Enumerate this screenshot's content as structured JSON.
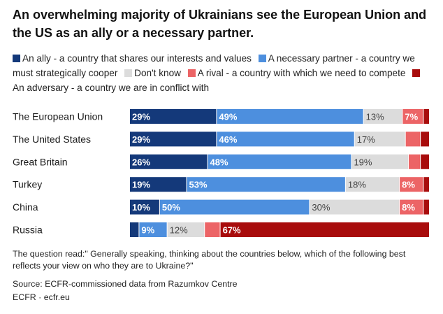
{
  "chart_data": {
    "type": "bar",
    "orientation": "horizontal",
    "stacked": true,
    "title": "An overwhelming majority of Ukrainians see the European Union and the US as an ally or a necessary partner.",
    "categories": [
      "The European Union",
      "The United States",
      "Great Britain",
      "Turkey",
      "China",
      "Russia"
    ],
    "series": [
      {
        "name": "An ally - a country that shares our interests and values",
        "color": "#14397a",
        "text_color": "#ffffff",
        "values": [
          29,
          29,
          26,
          19,
          10,
          3
        ],
        "labels": [
          "29%",
          "29%",
          "26%",
          "19%",
          "10%",
          ""
        ]
      },
      {
        "name": "A necessary partner - a country we must strategically cooper",
        "color": "#4d8fde",
        "text_color": "#ffffff",
        "values": [
          49,
          46,
          48,
          53,
          50,
          9
        ],
        "labels": [
          "49%",
          "46%",
          "48%",
          "53%",
          "50%",
          "9%"
        ]
      },
      {
        "name": "Don't know",
        "color": "#dcdcdc",
        "text_color": "#444444",
        "values": [
          13,
          17,
          19,
          18,
          30,
          12
        ],
        "labels": [
          "13%",
          "17%",
          "19%",
          "18%",
          "30%",
          "12%"
        ]
      },
      {
        "name": "A rival - a country with which we need to compete",
        "color": "#ec6466",
        "text_color": "#ffffff",
        "values": [
          7,
          5,
          4,
          8,
          8,
          5
        ],
        "labels": [
          "7%",
          "",
          "",
          "8%",
          "8%",
          ""
        ]
      },
      {
        "name": "An adversary - a country we are in conflict with",
        "color": "#a80c0c",
        "text_color": "#ffffff",
        "values": [
          2,
          3,
          3,
          2,
          2,
          67
        ],
        "labels": [
          "",
          "",
          "",
          "",
          "",
          "67%"
        ]
      }
    ],
    "legend_position": "top",
    "grid": false
  },
  "legend": {
    "items": [
      {
        "label": "An ally - a country that shares our interests and values",
        "color": "#14397a"
      },
      {
        "label": "A necessary partner - a country we must strategically cooper",
        "color": "#4d8fde"
      },
      {
        "label": "Don't know",
        "color": "#dcdcdc"
      },
      {
        "label": "A rival - a country with which we need to compete",
        "color": "#ec6466"
      },
      {
        "label": "An adversary - a country we are in conflict with",
        "color": "#a80c0c"
      }
    ]
  },
  "footer": {
    "note": "The question read:\" Generally speaking, thinking about the countries below, which of the following best reflects your view on who they are to Ukraine?\"",
    "source": "Source: ECFR-commissioned data from Razumkov Centre",
    "credit": "ECFR · ecfr.eu"
  }
}
